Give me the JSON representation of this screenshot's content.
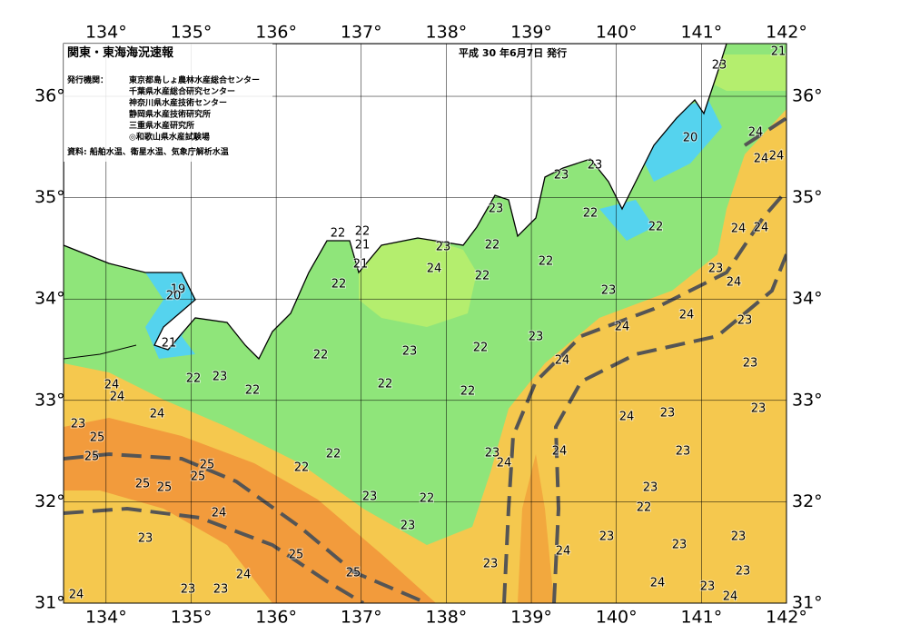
{
  "header": {
    "title": "関東・東海海況速報",
    "date": "平成 30 年6月7日 発行",
    "issuer_label": "発行機関：",
    "issuers": [
      "東京都島しょ農林水産総合センター",
      "千葉県水産総合研究センター",
      "神奈川県水産技術センター",
      "静岡県水産技術研究所",
      "三重県水産研究所",
      "◎和歌山県水産試験場"
    ],
    "source": "資料: 船舶水温、衛星水温、気象庁解析水温"
  },
  "map": {
    "xlim": [
      133.5,
      142
    ],
    "ylim": [
      31,
      36.52
    ],
    "xticks": [
      {
        "value": 134,
        "label": "134°"
      },
      {
        "value": 135,
        "label": "135°"
      },
      {
        "value": 136,
        "label": "136°"
      },
      {
        "value": 137,
        "label": "137°"
      },
      {
        "value": 138,
        "label": "138°"
      },
      {
        "value": 139,
        "label": "139°"
      },
      {
        "value": 140,
        "label": "140°"
      },
      {
        "value": 141,
        "label": "141°"
      },
      {
        "value": 142,
        "label": "142°"
      }
    ],
    "yticks": [
      {
        "value": 31,
        "label": "31°"
      },
      {
        "value": 32,
        "label": "32°"
      },
      {
        "value": 33,
        "label": "33°"
      },
      {
        "value": 34,
        "label": "34°"
      },
      {
        "value": 35,
        "label": "35°"
      },
      {
        "value": 36,
        "label": "36°"
      }
    ],
    "isotherm_labels": [
      23,
      21,
      20,
      24,
      24,
      24,
      23,
      23,
      23,
      22,
      22,
      22,
      21,
      24,
      24,
      23,
      22,
      22,
      22,
      24,
      21,
      22,
      22,
      19,
      20,
      23,
      24,
      23,
      24,
      23,
      24,
      21,
      22,
      23,
      22,
      23,
      23,
      24,
      22,
      23,
      24,
      24,
      22,
      22,
      22,
      23,
      23,
      24,
      24,
      23,
      25,
      25,
      24,
      23,
      24,
      22,
      23,
      25,
      25,
      22,
      25,
      25,
      23,
      23,
      22,
      22,
      24,
      23,
      23,
      23,
      23,
      23,
      24,
      25,
      23,
      23,
      25,
      24,
      24,
      23,
      23,
      23,
      24,
      24
    ]
  }
}
